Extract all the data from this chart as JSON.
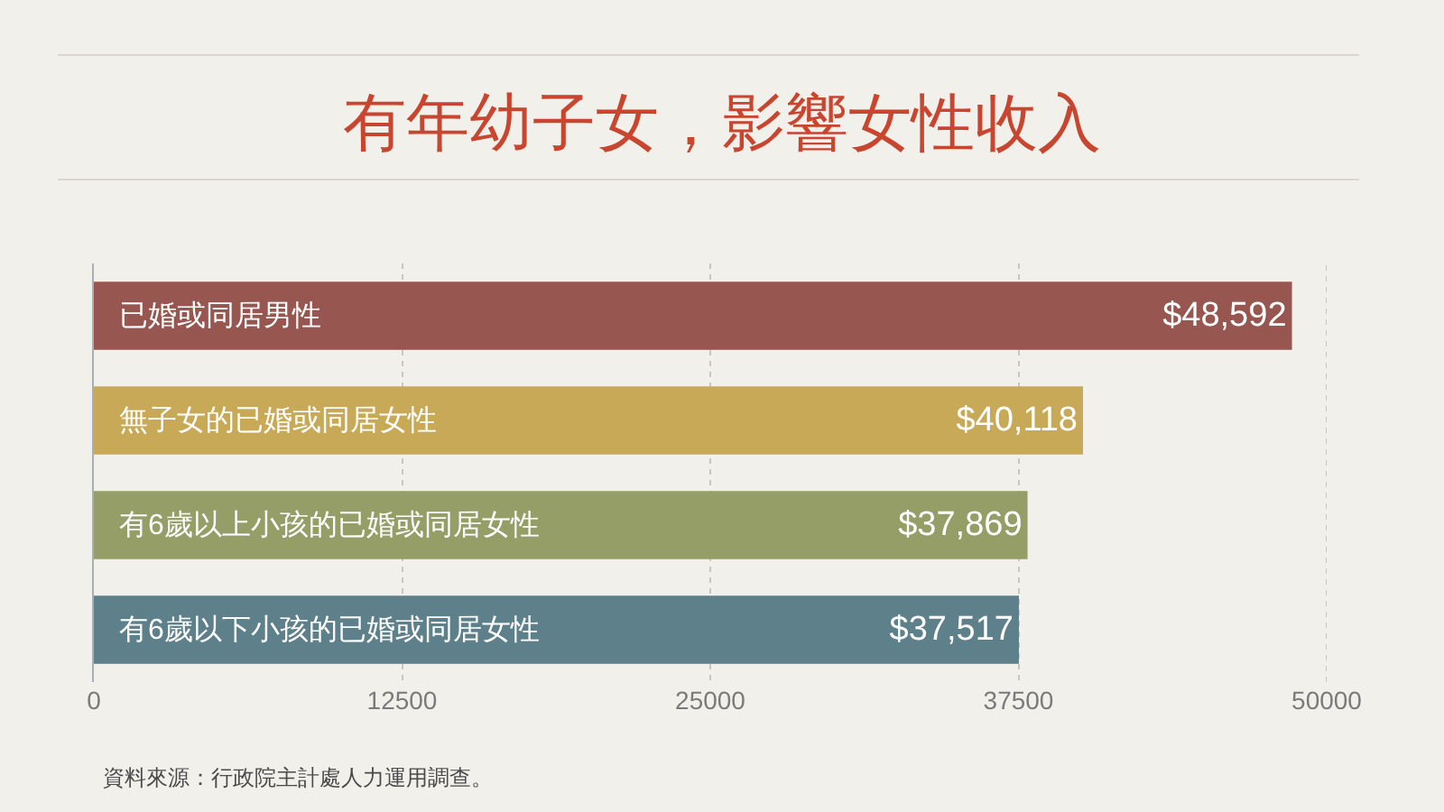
{
  "chart_data": {
    "type": "bar",
    "orientation": "horizontal",
    "title": "有年幼子女，影響女性收入",
    "categories": [
      "已婚或同居男性",
      "無子女的已婚或同居女性",
      "有6歲以上小孩的已婚或同居女性",
      "有6歲以下小孩的已婚或同居女性"
    ],
    "values": [
      48592,
      40118,
      37869,
      37517
    ],
    "value_labels": [
      "$48,592",
      "$40,118",
      "$37,869",
      "$37,517"
    ],
    "colors": [
      "#97564f",
      "#c8a957",
      "#949e66",
      "#5e808a"
    ],
    "xlim": [
      0,
      50000
    ],
    "xticks": [
      0,
      12500,
      25000,
      37500,
      50000
    ],
    "grid": "x",
    "legend": false,
    "annotations": [
      "資料來源：行政院主計處人力運用調查。"
    ]
  }
}
